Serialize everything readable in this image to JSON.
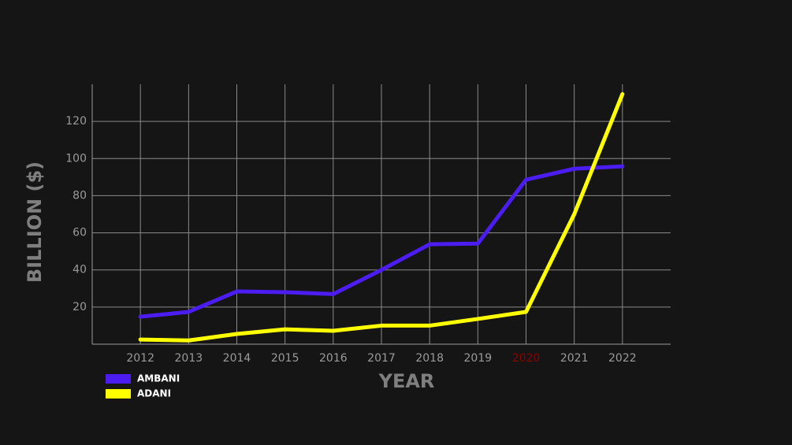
{
  "chart_data": {
    "type": "line",
    "x_label": "YEAR",
    "y_label": "BILLION ($)",
    "x": [
      2012,
      2013,
      2014,
      2015,
      2016,
      2017,
      2018,
      2019,
      2020,
      2021,
      2022
    ],
    "series": [
      {
        "name": "AMBANI",
        "color": "#4b1df0",
        "values": [
          14.8,
          17.4,
          28.4,
          28,
          27,
          40,
          53.8,
          54.2,
          88.6,
          94.5,
          95.8
        ]
      },
      {
        "name": "ADANI",
        "color": "#ffff00",
        "values": [
          2.5,
          2,
          5.5,
          8,
          7.2,
          10,
          10,
          13.6,
          17.4,
          70,
          134.7
        ]
      }
    ],
    "xlim": [
      2011,
      2023
    ],
    "xticks": [
      2012,
      2013,
      2014,
      2015,
      2016,
      2017,
      2018,
      2019,
      2020,
      2021,
      2022
    ],
    "ylim": [
      0,
      140
    ],
    "yticks": [
      20,
      40,
      60,
      80,
      100,
      120
    ],
    "grid": true,
    "highlight_xtick": 2020,
    "highlight_color": "#8b0000",
    "legend": "bottom-left"
  }
}
